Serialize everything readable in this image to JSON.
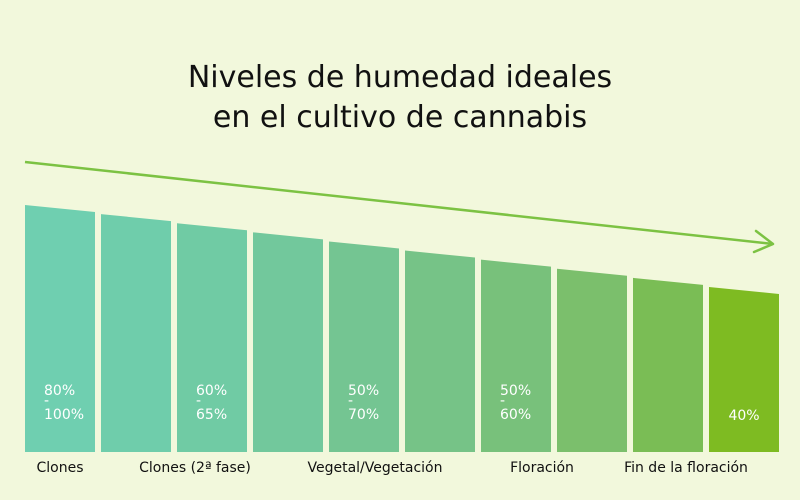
{
  "title_lines": [
    "Niveles de humedad ideales",
    "en el cultivo de cannabis"
  ],
  "colors": {
    "background": "#f2f8dc",
    "arrow": "#7cc243",
    "bars": [
      "#6fcfb0",
      "#6fcdab",
      "#70cba4",
      "#72c89c",
      "#74c592",
      "#76c387",
      "#78c17b",
      "#7bbf6c",
      "#7abd55",
      "#7ebb22"
    ]
  },
  "chart_data": {
    "type": "bar",
    "title": "Niveles de humedad ideales en el cultivo de cannabis",
    "categories": [
      "Clones",
      "Clones (2ª fase)",
      "Vegetal/Vegetación",
      "Floración",
      "Fin de la floración"
    ],
    "value_labels": [
      {
        "category": "Clones",
        "lines": [
          "80%",
          "-",
          "100%"
        ]
      },
      {
        "category": "Clones (2ª fase)",
        "lines": [
          "60%",
          "-",
          "65%"
        ]
      },
      {
        "category": "Vegetal/Vegetación",
        "lines": [
          "50%",
          "-",
          "70%"
        ]
      },
      {
        "category": "Floración",
        "lines": [
          "50%",
          "-",
          "60%"
        ]
      },
      {
        "category": "Fin de la floración",
        "lines": [
          "40%"
        ]
      }
    ],
    "bars_per_category": 2,
    "trend": "decreasing",
    "legend": "none",
    "grid": false
  }
}
